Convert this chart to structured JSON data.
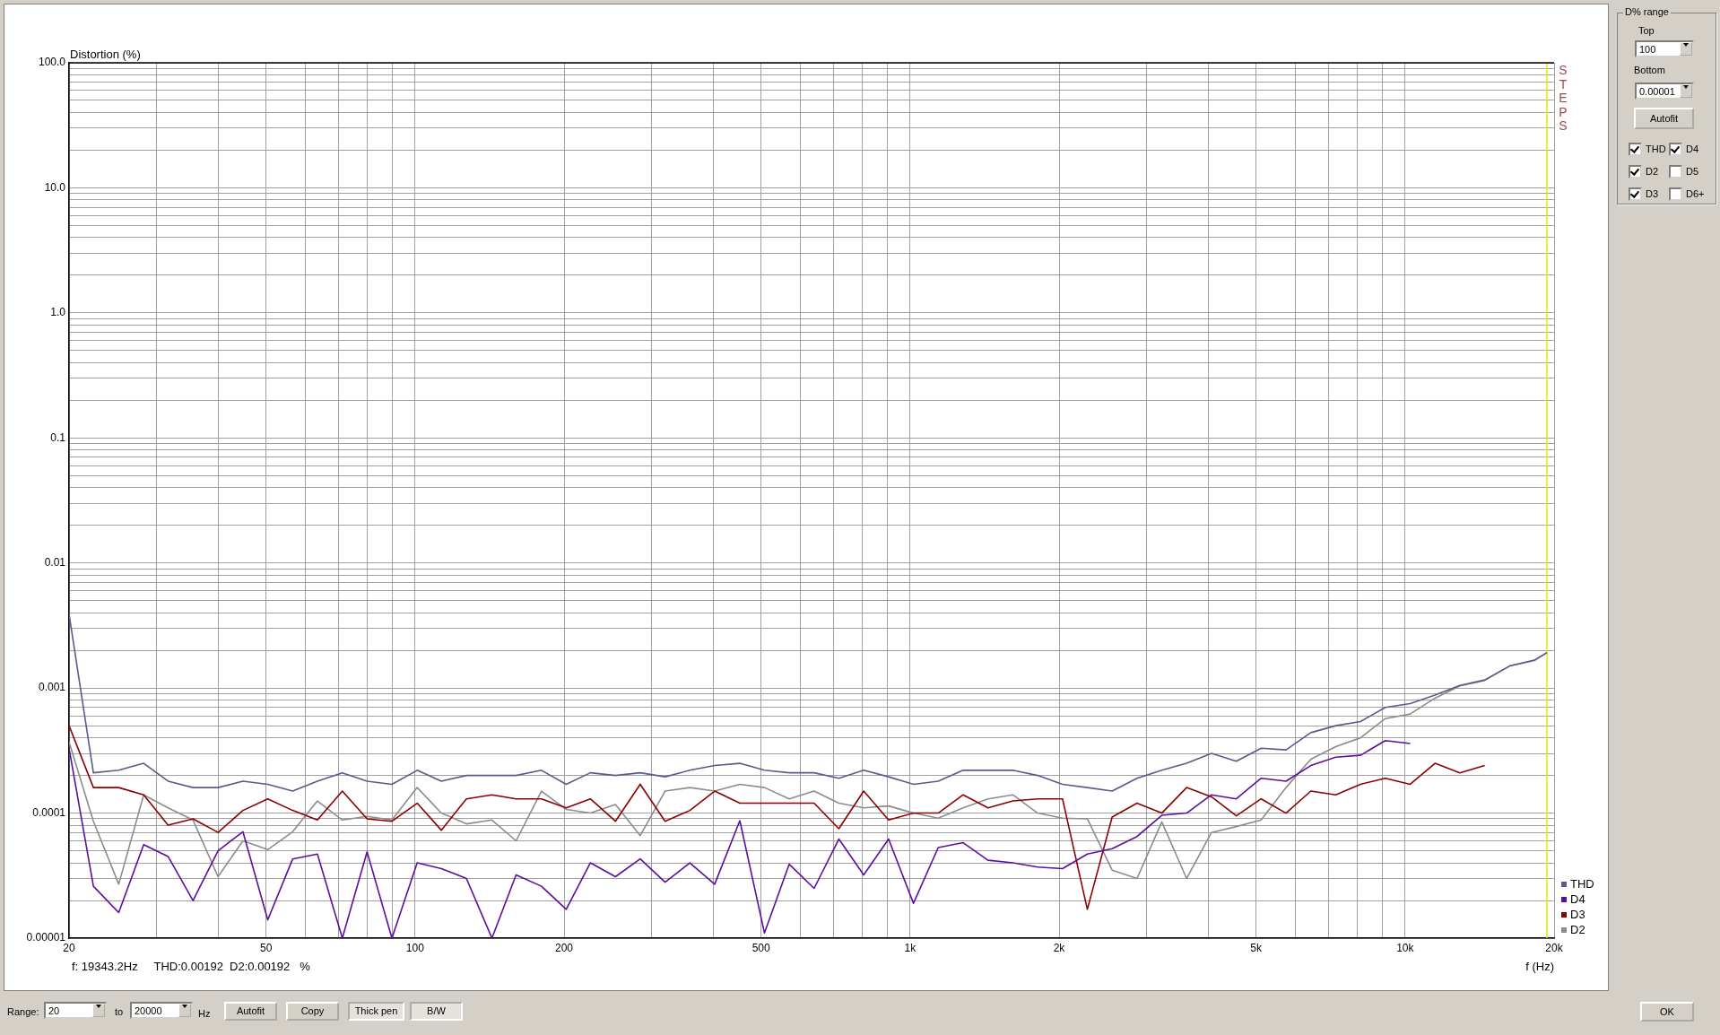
{
  "chart_data": {
    "type": "line",
    "ylabel": "Distortion (%)",
    "xlabel": "f (Hz)",
    "log": "xy",
    "grid": true,
    "legend": "bottom right",
    "marker": "none",
    "line_style": "solid",
    "xlim": [
      20,
      20000
    ],
    "ylim": [
      1e-05,
      100
    ],
    "xticks": [
      20,
      {
        "value": 30,
        "label": null
      },
      {
        "value": 40,
        "label": null
      },
      50,
      {
        "value": 60,
        "label": null
      },
      {
        "value": 70,
        "label": null
      },
      {
        "value": 80,
        "label": null
      },
      {
        "value": 90,
        "label": null
      },
      100,
      200,
      {
        "value": 300,
        "label": null
      },
      {
        "value": 400,
        "label": null
      },
      500,
      {
        "value": 600,
        "label": null
      },
      {
        "value": 700,
        "label": null
      },
      {
        "value": 800,
        "label": null
      },
      {
        "value": 900,
        "label": null
      },
      {
        "value": 1000,
        "label": "1k"
      },
      {
        "value": 2000,
        "label": "2k"
      },
      {
        "value": 3000,
        "label": null
      },
      {
        "value": 4000,
        "label": null
      },
      {
        "value": 5000,
        "label": "5k"
      },
      {
        "value": 6000,
        "label": null
      },
      {
        "value": 7000,
        "label": null
      },
      {
        "value": 8000,
        "label": null
      },
      {
        "value": 9000,
        "label": null
      },
      {
        "value": 10000,
        "label": "10k"
      },
      {
        "value": 20000,
        "label": "20k"
      }
    ],
    "yticks": [
      {
        "value": 1e-05,
        "label": "0.00001"
      },
      {
        "value": 2e-05,
        "label": null
      },
      {
        "value": 3e-05,
        "label": null
      },
      {
        "value": 4e-05,
        "label": null
      },
      {
        "value": 5e-05,
        "label": null
      },
      {
        "value": 6e-05,
        "label": null
      },
      {
        "value": 7e-05,
        "label": null
      },
      {
        "value": 8e-05,
        "label": null
      },
      {
        "value": 9e-05,
        "label": null
      },
      0.0001,
      {
        "value": 0.0002,
        "label": null
      },
      {
        "value": 0.0003,
        "label": null
      },
      {
        "value": 0.0004,
        "label": null
      },
      {
        "value": 0.0005,
        "label": null
      },
      {
        "value": 0.0006,
        "label": null
      },
      {
        "value": 0.0007,
        "label": null
      },
      {
        "value": 0.0008,
        "label": null
      },
      {
        "value": 0.0009,
        "label": null
      },
      0.001,
      {
        "value": 0.002,
        "label": null
      },
      {
        "value": 0.003,
        "label": null
      },
      {
        "value": 0.004,
        "label": null
      },
      {
        "value": 0.005,
        "label": null
      },
      {
        "value": 0.006,
        "label": null
      },
      {
        "value": 0.007,
        "label": null
      },
      {
        "value": 0.008,
        "label": null
      },
      {
        "value": 0.009,
        "label": null
      },
      0.01,
      {
        "value": 0.02,
        "label": null
      },
      {
        "value": 0.03,
        "label": null
      },
      {
        "value": 0.04,
        "label": null
      },
      {
        "value": 0.05,
        "label": null
      },
      {
        "value": 0.06,
        "label": null
      },
      {
        "value": 0.07,
        "label": null
      },
      {
        "value": 0.08,
        "label": null
      },
      {
        "value": 0.09,
        "label": null
      },
      0.1,
      {
        "value": 0.2,
        "label": null
      },
      {
        "value": 0.3,
        "label": null
      },
      {
        "value": 0.4,
        "label": null
      },
      {
        "value": 0.5,
        "label": null
      },
      {
        "value": 0.6,
        "label": null
      },
      {
        "value": 0.7,
        "label": null
      },
      {
        "value": 0.8,
        "label": null
      },
      {
        "value": 0.9,
        "label": null
      },
      {
        "value": 1,
        "label": "1.0"
      },
      {
        "value": 2,
        "label": null
      },
      {
        "value": 3,
        "label": null
      },
      {
        "value": 4,
        "label": null
      },
      {
        "value": 5,
        "label": null
      },
      {
        "value": 6,
        "label": null
      },
      {
        "value": 7,
        "label": null
      },
      {
        "value": 8,
        "label": null
      },
      {
        "value": 9,
        "label": null
      },
      {
        "value": 10,
        "label": "10.0"
      },
      {
        "value": 20,
        "label": null
      },
      {
        "value": 30,
        "label": null
      },
      {
        "value": 40,
        "label": null
      },
      {
        "value": 50,
        "label": null
      },
      {
        "value": 60,
        "label": null
      },
      {
        "value": 70,
        "label": null
      },
      {
        "value": 80,
        "label": null
      },
      {
        "value": 90,
        "label": null
      },
      {
        "value": 100,
        "label": "100.0"
      }
    ],
    "x": [
      20,
      22.4,
      25.2,
      28.3,
      31.7,
      35.6,
      40,
      44.9,
      50.4,
      56.6,
      63.5,
      71.3,
      80,
      89.8,
      101,
      113,
      127,
      143,
      160,
      180,
      202,
      226,
      254,
      285,
      320,
      359,
      403,
      453,
      508,
      570,
      640,
      718,
      806,
      905,
      1016,
      1140,
      1280,
      1437,
      1613,
      1810,
      2032,
      2281,
      2560,
      2874,
      3225,
      3620,
      4064,
      4561,
      5120,
      5747,
      6451,
      7241,
      8128,
      9123,
      10240,
      11494,
      12902,
      14482,
      16255,
      18246,
      19343
    ],
    "series": [
      {
        "name": "THD",
        "color": "#5a5a8c",
        "values": [
          0.0039,
          0.00021,
          0.00022,
          0.00025,
          0.00018,
          0.00016,
          0.00016,
          0.00018,
          0.00017,
          0.00015,
          0.00018,
          0.00021,
          0.00018,
          0.00017,
          0.00022,
          0.00018,
          0.0002,
          0.0002,
          0.0002,
          0.00022,
          0.00017,
          0.00021,
          0.0002,
          0.00021,
          0.000195,
          0.00022,
          0.00024,
          0.00025,
          0.00022,
          0.00021,
          0.00021,
          0.00019,
          0.00022,
          0.000195,
          0.00017,
          0.00018,
          0.00022,
          0.00022,
          0.00022,
          0.0002,
          0.00017,
          0.00016,
          0.00015,
          0.00019,
          0.00022,
          0.00025,
          0.0003,
          0.00026,
          0.00033,
          0.00032,
          0.00044,
          0.0005,
          0.00054,
          0.0007,
          0.00075,
          0.00088,
          0.00105,
          0.00116,
          0.0015,
          0.00167,
          0.00192
        ]
      },
      {
        "name": "D4",
        "color": "#5c0f9c",
        "values": [
          0.00033,
          2.6e-05,
          1.6e-05,
          5.6e-05,
          4.5e-05,
          2e-05,
          5e-05,
          7.1e-05,
          1.4e-05,
          4.3e-05,
          4.7e-05,
          1e-05,
          4.9e-05,
          1e-05,
          4e-05,
          3.6e-05,
          3e-05,
          1e-05,
          3.2e-05,
          2.6e-05,
          1.7e-05,
          4e-05,
          3.1e-05,
          4.3e-05,
          2.8e-05,
          4e-05,
          2.7e-05,
          8.7e-05,
          1.1e-05,
          3.9e-05,
          2.5e-05,
          6.2e-05,
          3.2e-05,
          6.2e-05,
          1.9e-05,
          5.3e-05,
          5.8e-05,
          4.2e-05,
          4e-05,
          3.7e-05,
          3.6e-05,
          4.7e-05,
          5.2e-05,
          6.5e-05,
          9.6e-05,
          0.0001,
          0.00014,
          0.00013,
          0.00019,
          0.00018,
          0.00024,
          0.00028,
          0.00029,
          0.00038,
          0.00036,
          null,
          null,
          null,
          null,
          null,
          null
        ]
      },
      {
        "name": "D3",
        "color": "#8b0000",
        "values": [
          0.0005,
          0.00016,
          0.00016,
          0.00014,
          8e-05,
          9e-05,
          7e-05,
          0.000105,
          0.00013,
          0.000105,
          8.8e-05,
          0.00015,
          9e-05,
          8.6e-05,
          0.00012,
          7.3e-05,
          0.00013,
          0.00014,
          0.00013,
          0.00013,
          0.00011,
          0.00013,
          8.6e-05,
          0.00017,
          8.6e-05,
          0.000105,
          0.00015,
          0.00012,
          0.00012,
          0.00012,
          0.00012,
          7.5e-05,
          0.00015,
          8.8e-05,
          0.0001,
          0.0001,
          0.00014,
          0.00011,
          0.000125,
          0.00013,
          0.00013,
          1.7e-05,
          9.3e-05,
          0.00012,
          0.0001,
          0.00016,
          0.000135,
          9.5e-05,
          0.00013,
          0.0001,
          0.00015,
          0.00014,
          0.00017,
          0.00019,
          0.00017,
          0.00025,
          0.00021,
          0.00024,
          null,
          null,
          null
        ]
      },
      {
        "name": "D2",
        "color": "#8c8c8c",
        "values": [
          0.00037,
          8.6e-05,
          2.7e-05,
          0.00014,
          0.00011,
          8.8e-05,
          3.1e-05,
          6e-05,
          5.1e-05,
          7.1e-05,
          0.000125,
          8.8e-05,
          9.4e-05,
          8.8e-05,
          0.00016,
          0.0001,
          8.2e-05,
          8.8e-05,
          6e-05,
          0.00015,
          0.000107,
          0.0001,
          0.000117,
          6.6e-05,
          0.00015,
          0.00016,
          0.00015,
          0.00017,
          0.00016,
          0.00013,
          0.00015,
          0.00012,
          0.00011,
          0.000114,
          0.0001,
          9.1e-05,
          0.00011,
          0.00013,
          0.00014,
          0.0001,
          9.1e-05,
          9e-05,
          3.5e-05,
          3e-05,
          8.5e-05,
          3e-05,
          7e-05,
          7.8e-05,
          8.8e-05,
          0.00016,
          0.00027,
          0.00034,
          0.0004,
          0.00057,
          0.00062,
          0.00083,
          0.00104,
          0.00115,
          0.0015,
          0.00166,
          0.00192
        ]
      }
    ],
    "ref_lines": [
      {
        "axis": "x",
        "value": 19343,
        "color": "#e6e600"
      }
    ],
    "annotations": [
      "f: 19343.2Hz     THD:0.00192  D2:0.00192   %",
      "STEPS",
      "D% range",
      "Top",
      "100",
      "Bottom",
      "0.00001",
      "Autofit",
      "THD",
      "D4",
      "D2",
      "D5",
      "D3",
      "D6+",
      "Range:",
      "20",
      "to",
      "20000",
      "Hz",
      "Autofit",
      "Copy",
      "Thick pen",
      "B/W",
      "OK"
    ]
  }
}
